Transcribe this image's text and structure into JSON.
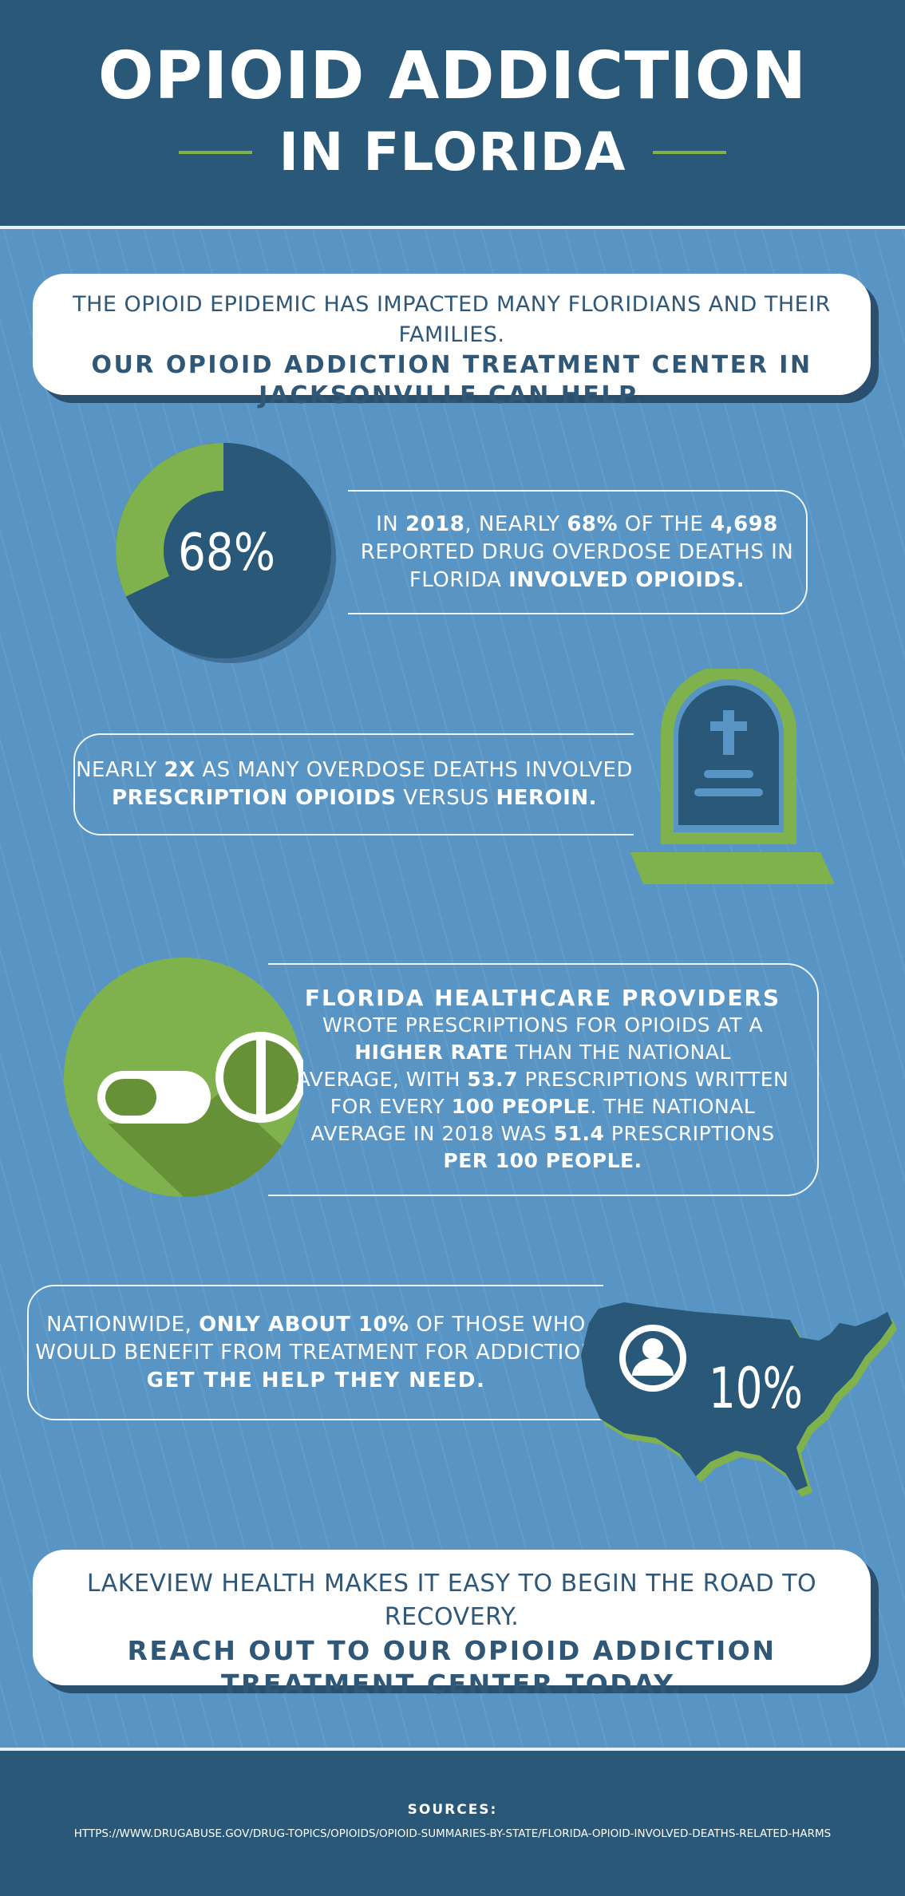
{
  "header": {
    "title_line1": "OPIOID ADDICTION",
    "title_line2": "IN FLORIDA"
  },
  "intro": {
    "text": "THE OPIOID EPIDEMIC HAS IMPACTED MANY FLORIDIANS AND THEIR FAMILIES.",
    "emphasis_line1": "OUR OPIOID ADDICTION TREATMENT CENTER IN",
    "emphasis_line2": "JACKSONVILLE CAN HELP."
  },
  "stat1": {
    "donut_label": "68%",
    "donut_fraction": 0.68,
    "p1": "IN ",
    "p2": "2018",
    "p3": ", NEARLY ",
    "p4": "68%",
    "p5": " OF THE ",
    "p6": "4,698",
    "p7": "REPORTED DRUG OVERDOSE DEATHS IN",
    "p8": "FLORIDA ",
    "p9": "INVOLVED OPIOIDS."
  },
  "stat2": {
    "p1": "NEARLY ",
    "p2": "2X",
    "p3": " AS MANY OVERDOSE DEATHS INVOLVED",
    "p4": "PRESCRIPTION OPIOIDS",
    "p5": " VERSUS ",
    "p6": "HEROIN."
  },
  "stat3": {
    "p1": "FLORIDA HEALTHCARE PROVIDERS",
    "p2": "WROTE PRESCRIPTIONS FOR OPIOIDS AT A",
    "p3": "HIGHER RATE",
    "p4": " THAN THE NATIONAL",
    "p5": "AVERAGE, WITH ",
    "p6": "53.7",
    "p7": " PRESCRIPTIONS WRITTEN",
    "p8": "FOR EVERY ",
    "p9": "100 PEOPLE",
    "p10": ". THE NATIONAL",
    "p11": "AVERAGE IN 2018 WAS ",
    "p12": "51.4",
    "p13": " PRESCRIPTIONS",
    "p14": "PER 100 PEOPLE."
  },
  "stat4": {
    "p1": "NATIONWIDE, ",
    "p2": "ONLY ABOUT 10%",
    "p3": " OF THOSE WHO",
    "p4": "WOULD BENEFIT FROM TREATMENT FOR ADDICTION",
    "p5": "GET THE HELP THEY NEED.",
    "map_label": "10%"
  },
  "cta": {
    "text": "LAKEVIEW HEALTH MAKES IT EASY TO BEGIN THE ROAD TO RECOVERY.",
    "emphasis_line1": "REACH OUT TO OUR OPIOID ADDICTION",
    "emphasis_line2": "TREATMENT CENTER TODAY."
  },
  "sources": {
    "heading": "SOURCES:",
    "url": "HTTPS://WWW.DRUGABUSE.GOV/DRUG-TOPICS/OPIOIDS/OPIOID-SUMMARIES-BY-STATE/FLORIDA-OPIOID-INVOLVED-DEATHS-RELATED-HARMS"
  },
  "colors": {
    "navy": "#295879",
    "blue_bg": "#5894c4",
    "green": "#7fb24c",
    "dark_navy": "#2b4f6e",
    "white": "#ffffff"
  },
  "icons": [
    "donut-chart",
    "tombstone-icon",
    "pill-icon",
    "usa-map-icon",
    "user-icon"
  ]
}
